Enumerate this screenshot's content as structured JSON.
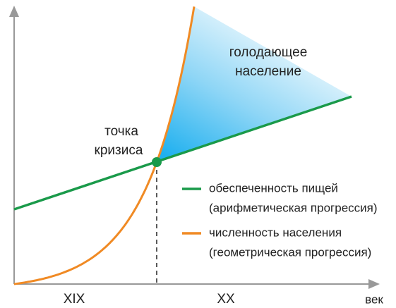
{
  "diagram": {
    "axes": {
      "x_label": "век",
      "x_sections": [
        "XIX",
        "XX"
      ]
    },
    "regions": {
      "hungry": [
        "голодающее",
        "население"
      ]
    },
    "points": {
      "crisis": [
        "точка",
        "кризиса"
      ]
    },
    "legend": [
      {
        "lines": [
          "обеспеченность пищей",
          "(арифметическая прогрессия)"
        ],
        "color": "#1a9a4a"
      },
      {
        "lines": [
          "численность населения",
          "(геометрическая прогрессия)"
        ],
        "color": "#f08a24"
      }
    ]
  }
}
